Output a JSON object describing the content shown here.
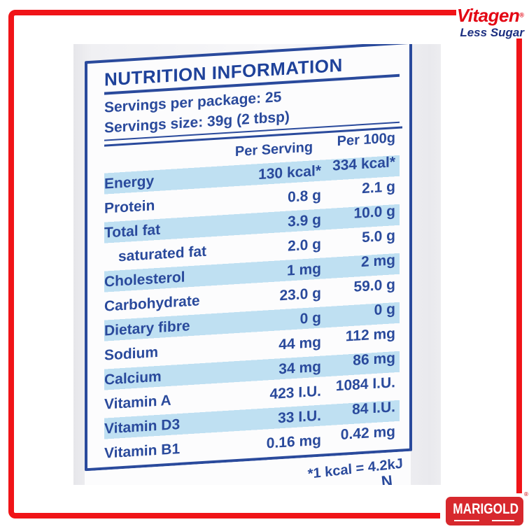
{
  "header_logo": {
    "brand": "Vitagen",
    "reg": "®",
    "tagline": "Less Sugar"
  },
  "footer_logo": {
    "brand": "MARIGOLD",
    "reg": "®"
  },
  "nutrition_label": {
    "title": "NUTRITION INFORMATION",
    "servings_per_package": "Servings per package: 25",
    "serving_size": "Servings size: 39g (2 tbsp)",
    "col_per_serving": "Per Serving",
    "col_per_100g": "Per 100g",
    "rows": [
      {
        "name": "Energy",
        "per_serving": "130 kcal*",
        "per_100g": "334 kcal*"
      },
      {
        "name": "Protein",
        "per_serving": "0.8 g",
        "per_100g": "2.1 g"
      },
      {
        "name": "Total fat",
        "per_serving": "3.9 g",
        "per_100g": "10.0 g"
      },
      {
        "name": "saturated fat",
        "per_serving": "2.0 g",
        "per_100g": "5.0 g"
      },
      {
        "name": "Cholesterol",
        "per_serving": "1 mg",
        "per_100g": "2 mg"
      },
      {
        "name": "Carbohydrate",
        "per_serving": "23.0 g",
        "per_100g": "59.0 g"
      },
      {
        "name": "Dietary fibre",
        "per_serving": "0 g",
        "per_100g": "0 g"
      },
      {
        "name": "Sodium",
        "per_serving": "44 mg",
        "per_100g": "112 mg"
      },
      {
        "name": "Calcium",
        "per_serving": "34 mg",
        "per_100g": "86 mg"
      },
      {
        "name": "Vitamin A",
        "per_serving": "423 I.U.",
        "per_100g": "1084 I.U."
      },
      {
        "name": "Vitamin D3",
        "per_serving": "33 I.U.",
        "per_100g": "84 I.U."
      },
      {
        "name": "Vitamin B1",
        "per_serving": "0.16 mg",
        "per_100g": "0.42 mg"
      }
    ],
    "footnote": "*1 kcal = 4.2kJ",
    "cutoff_mark": "N"
  },
  "colors": {
    "frame_red": "#f01418",
    "brand_red": "#e30613",
    "tagline_navy": "#1c2f80",
    "marigold_red": "#d7282d",
    "label_text_blue": "#2a4a9c",
    "stripe_blue": "#bfe0f2"
  }
}
